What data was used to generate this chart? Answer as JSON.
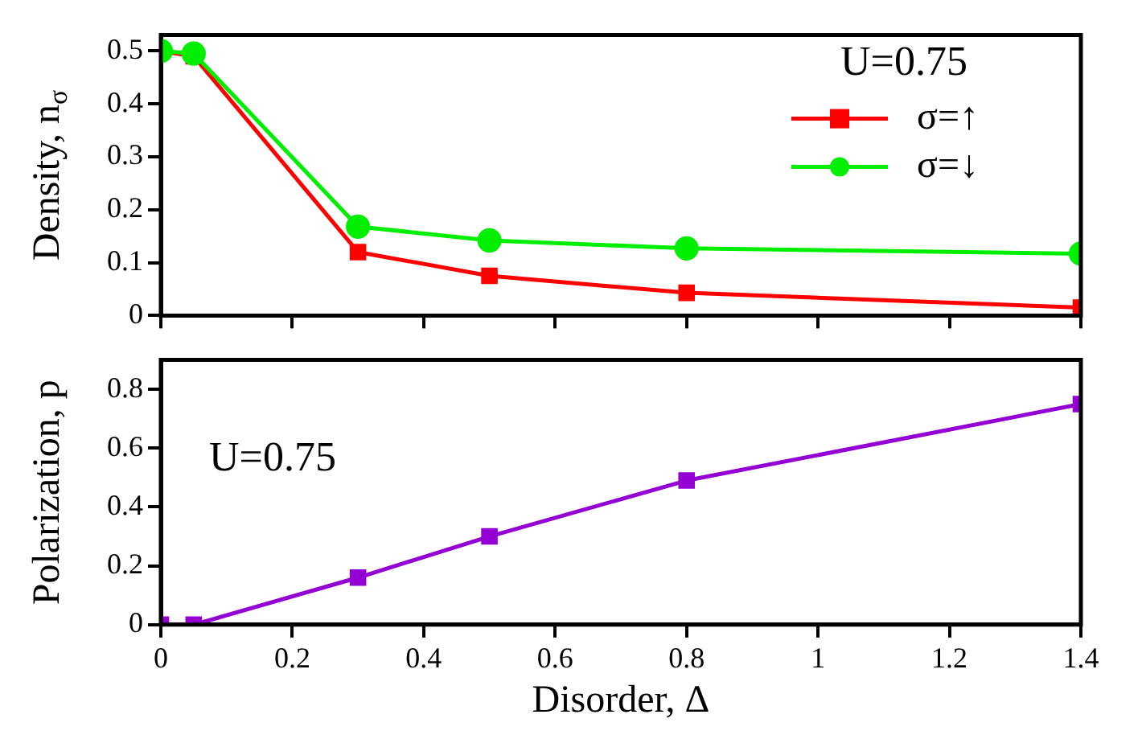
{
  "chart_data": [
    {
      "type": "line",
      "ylabel": "Density, n$_{σ}$",
      "legend_title": "U=0.75",
      "legend": "top right",
      "grid": false,
      "tick_labels": "y",
      "x": [
        0,
        0.05,
        0.3,
        0.5,
        0.8,
        1.4
      ],
      "xlim": [
        0,
        1.4
      ],
      "xticks": [
        0,
        0.2,
        0.4,
        0.6,
        0.8,
        1,
        1.2,
        1.4
      ],
      "ylim": [
        0,
        0.53
      ],
      "yticks": [
        0,
        0.1,
        0.2,
        0.3,
        0.4,
        0.5
      ],
      "series": [
        {
          "name": "σ=↑",
          "color": "#ff0000",
          "marker": "square",
          "values": [
            0.5,
            0.49,
            0.12,
            0.075,
            0.043,
            0.015
          ]
        },
        {
          "name": "σ=↓",
          "color": "#00ee00",
          "marker": "circle",
          "values": [
            0.5,
            0.495,
            0.168,
            0.142,
            0.127,
            0.117
          ]
        }
      ]
    },
    {
      "type": "line",
      "xlabel": "Disorder, Δ",
      "ylabel": "Polarization, p",
      "annotations": [
        "U=0.75"
      ],
      "grid": false,
      "legend": false,
      "marker": "square",
      "x": [
        0,
        0.05,
        0.3,
        0.5,
        0.8,
        1.4
      ],
      "xlim": [
        0,
        1.4
      ],
      "xticks": [
        0,
        0.2,
        0.4,
        0.6,
        0.8,
        1,
        1.2,
        1.4
      ],
      "ylim": [
        0,
        0.9
      ],
      "yticks": [
        0,
        0.2,
        0.4,
        0.6,
        0.8
      ],
      "series": [
        {
          "color": "#9400d3",
          "values": [
            0,
            0,
            0.16,
            0.3,
            0.49,
            0.75
          ]
        }
      ]
    }
  ]
}
